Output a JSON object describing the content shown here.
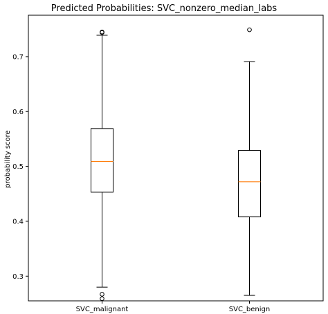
{
  "chart_data": {
    "type": "boxplot",
    "title": "Predicted Probabilities: SVC_nonzero_median_labs",
    "xlabel": "",
    "ylabel": "probability score",
    "ylim": [
      0.255,
      0.7755
    ],
    "yticks": [
      "0.3",
      "0.4",
      "0.5",
      "0.6",
      "0.7"
    ],
    "ytick_values": [
      0.3,
      0.4,
      0.5,
      0.6,
      0.7
    ],
    "grid": false,
    "median_color": "#ff7f0e",
    "categories": [
      "SVC_malignant",
      "SVC_benign"
    ],
    "boxes": [
      {
        "label": "SVC_malignant",
        "whisker_low": 0.28,
        "q1": 0.453,
        "median": 0.509,
        "q3": 0.569,
        "whisker_high": 0.739,
        "fliers": [
          0.744,
          0.745,
          0.267,
          0.259
        ]
      },
      {
        "label": "SVC_benign",
        "whisker_low": 0.265,
        "q1": 0.408,
        "median": 0.472,
        "q3": 0.529,
        "whisker_high": 0.691,
        "fliers": [
          0.749
        ]
      }
    ]
  }
}
